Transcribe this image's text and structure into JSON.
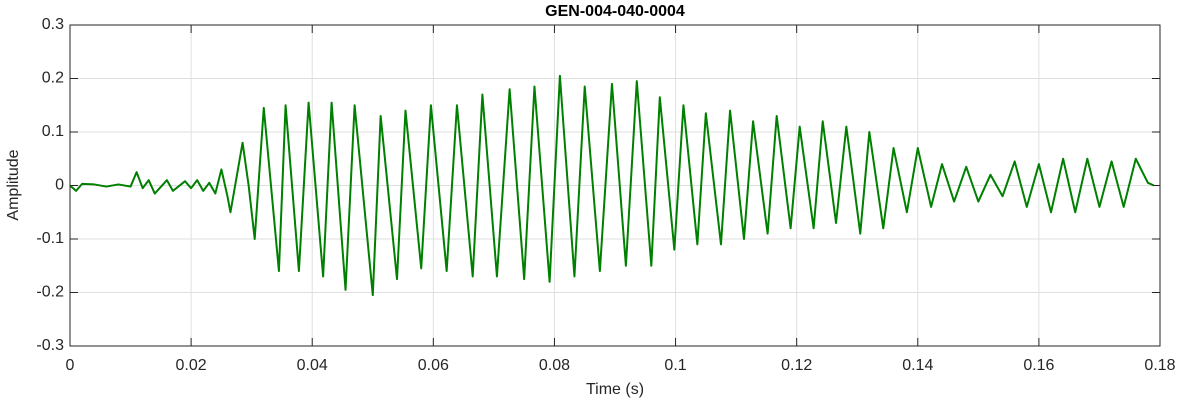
{
  "chart_data": {
    "type": "line",
    "title": "GEN-004-040-0004",
    "xlabel": "Time (s)",
    "ylabel": "Amplitude",
    "xlim": [
      0,
      0.18
    ],
    "ylim": [
      -0.3,
      0.3
    ],
    "xticks": [
      0,
      0.02,
      0.04,
      0.06,
      0.08,
      0.1,
      0.12,
      0.14,
      0.16,
      0.18
    ],
    "yticks": [
      -0.3,
      -0.2,
      -0.1,
      0,
      0.1,
      0.2,
      0.3
    ],
    "grid": true,
    "series": [
      {
        "name": "Amplitude",
        "color": "#008000",
        "x": [
          0,
          0.001,
          0.002,
          0.004,
          0.006,
          0.008,
          0.01,
          0.011,
          0.012,
          0.013,
          0.014,
          0.016,
          0.017,
          0.019,
          0.02,
          0.021,
          0.022,
          0.023,
          0.024,
          0.025,
          0.026,
          0.0265,
          0.0285,
          0.0295,
          0.0305,
          0.032,
          0.0345,
          0.0356,
          0.0378,
          0.0394,
          0.0418,
          0.0432,
          0.0455,
          0.047,
          0.05,
          0.0513,
          0.054,
          0.0554,
          0.058,
          0.0596,
          0.0622,
          0.0639,
          0.0665,
          0.0681,
          0.0705,
          0.0726,
          0.075,
          0.0767,
          0.0792,
          0.0809,
          0.0833,
          0.085,
          0.0875,
          0.0895,
          0.0918,
          0.0936,
          0.096,
          0.0974,
          0.0998,
          0.1013,
          0.1036,
          0.105,
          0.1075,
          0.109,
          0.1113,
          0.1128,
          0.1152,
          0.1167,
          0.119,
          0.1205,
          0.1228,
          0.1243,
          0.1265,
          0.1282,
          0.1305,
          0.132,
          0.1343,
          0.136,
          0.1382,
          0.14,
          0.1422,
          0.144,
          0.146,
          0.148,
          0.15,
          0.152,
          0.154,
          0.156,
          0.158,
          0.16,
          0.162,
          0.164,
          0.166,
          0.168,
          0.17,
          0.172,
          0.174,
          0.176,
          0.178,
          0.179
        ],
        "values": [
          0,
          -0.01,
          0.003,
          0.002,
          -0.002,
          0.002,
          -0.002,
          0.025,
          -0.005,
          0.01,
          -0.015,
          0.01,
          -0.01,
          0.008,
          -0.005,
          0.01,
          -0.01,
          0.005,
          -0.015,
          0.03,
          -0.02,
          -0.05,
          0.08,
          0.0,
          -0.1,
          0.145,
          -0.16,
          0.15,
          -0.16,
          0.155,
          -0.17,
          0.155,
          -0.195,
          0.15,
          -0.205,
          0.13,
          -0.175,
          0.14,
          -0.155,
          0.15,
          -0.16,
          0.15,
          -0.17,
          0.17,
          -0.17,
          0.18,
          -0.175,
          0.185,
          -0.18,
          0.205,
          -0.17,
          0.185,
          -0.16,
          0.19,
          -0.15,
          0.195,
          -0.15,
          0.165,
          -0.12,
          0.15,
          -0.11,
          0.135,
          -0.11,
          0.14,
          -0.1,
          0.12,
          -0.09,
          0.13,
          -0.08,
          0.11,
          -0.08,
          0.12,
          -0.07,
          0.11,
          -0.09,
          0.1,
          -0.08,
          0.07,
          -0.05,
          0.07,
          -0.04,
          0.04,
          -0.03,
          0.035,
          -0.03,
          0.02,
          -0.02,
          0.045,
          -0.04,
          0.04,
          -0.05,
          0.05,
          -0.05,
          0.05,
          -0.04,
          0.045,
          -0.04,
          0.05,
          0.005,
          0.0
        ]
      }
    ]
  }
}
